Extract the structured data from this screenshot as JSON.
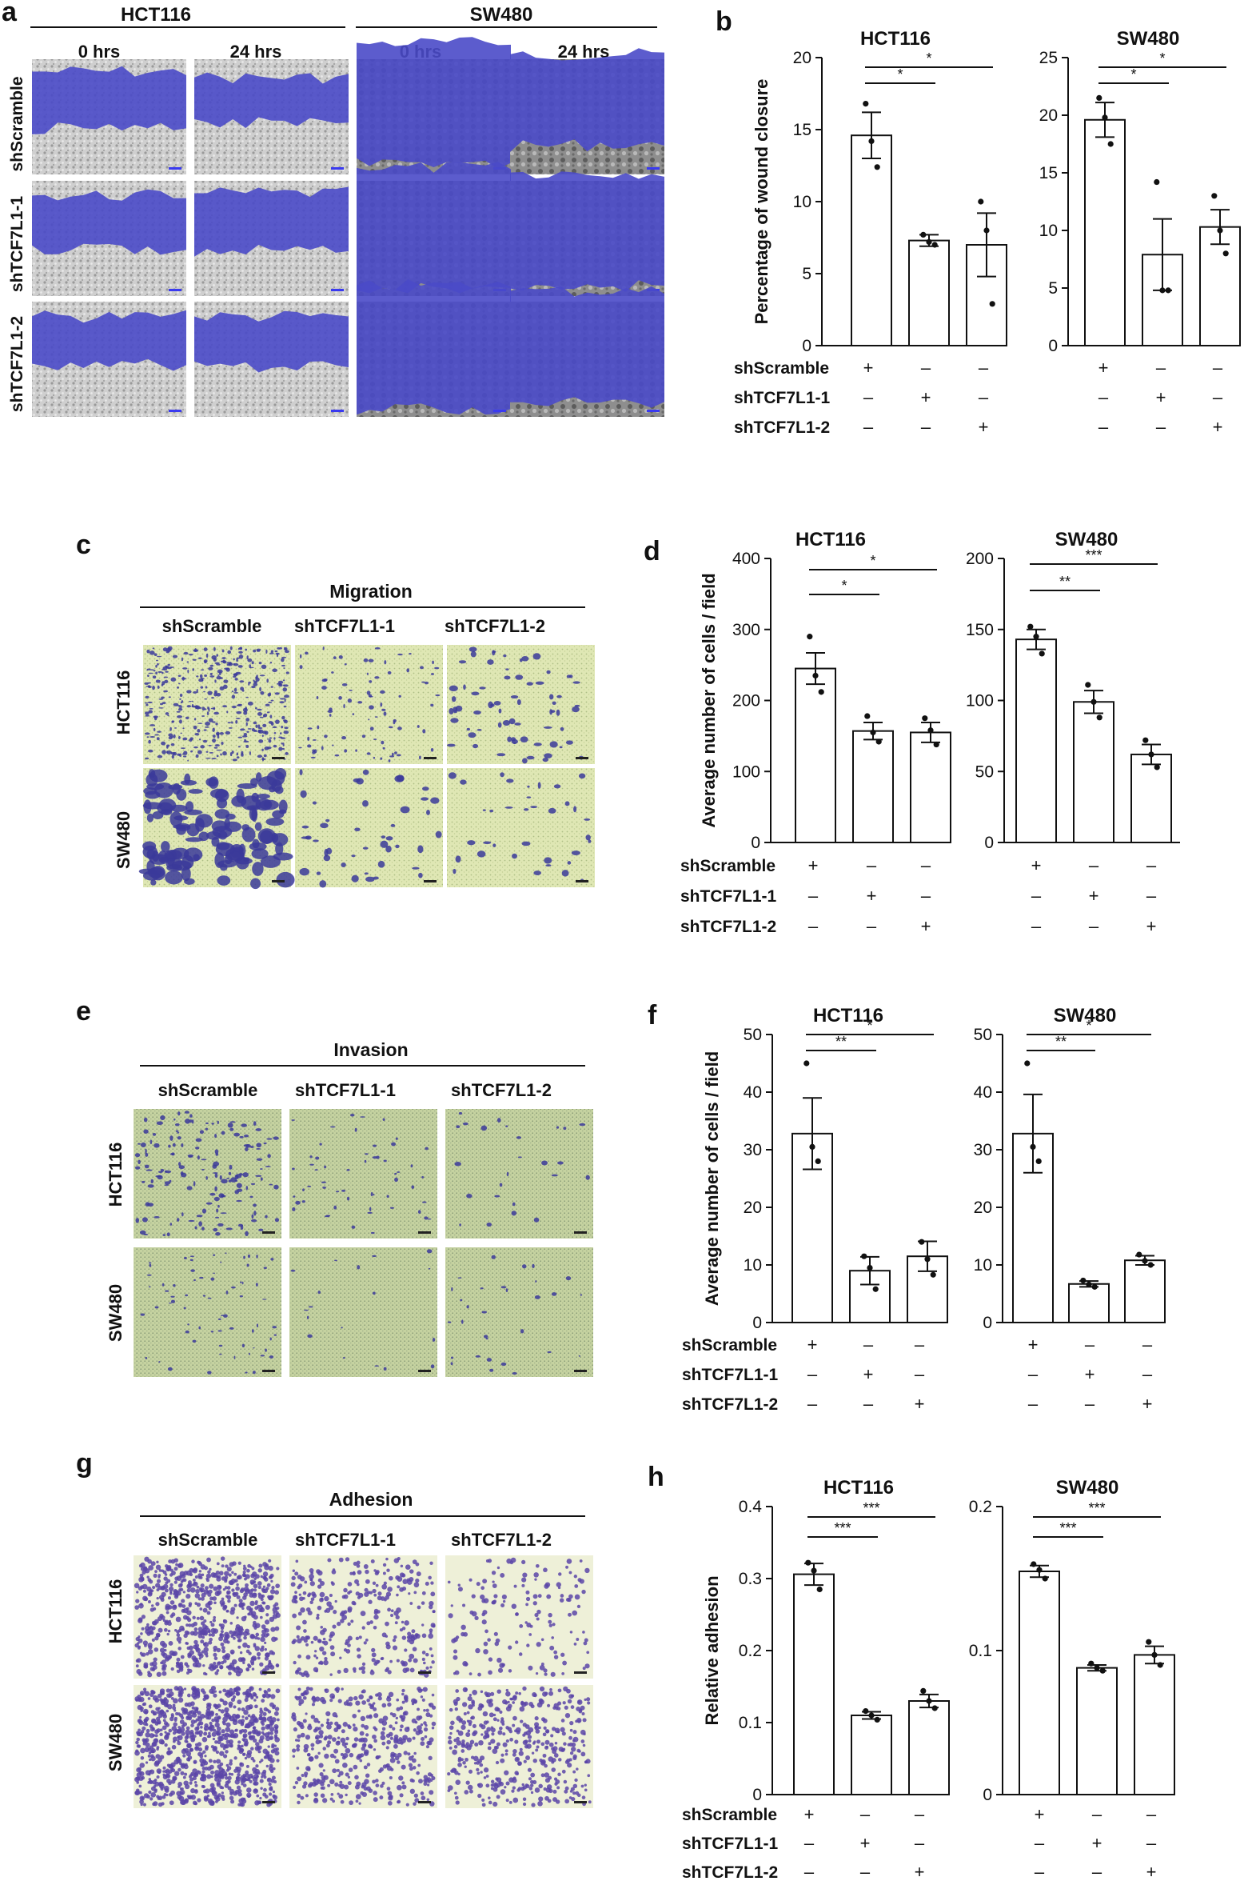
{
  "figure": {
    "panel_letters": [
      "a",
      "b",
      "c",
      "d",
      "e",
      "f",
      "g",
      "h"
    ],
    "treatment_rows": {
      "labels": [
        "shScramble",
        "shTCF7L1-1",
        "shTCF7L1-2"
      ],
      "plus": "+",
      "minus": "–"
    },
    "colors": {
      "wound_gap": "#4a4ac8",
      "cell_monolayer": "#c8c8c8",
      "transwell_background": "#dfe7b4",
      "crystal_violet": "#3b3a9a",
      "adhesion_background": "#eef0d8",
      "adhesion_cells": "#5a45a8",
      "bar_fill": "#ffffff",
      "bar_stroke": "#111111"
    },
    "panel_a": {
      "cell_lines": [
        "HCT116",
        "SW480"
      ],
      "timepoints": [
        "0 hrs",
        "24 hrs"
      ],
      "rows": [
        "shScramble",
        "shTCF7L1-1",
        "shTCF7L1-2"
      ]
    },
    "panel_c": {
      "title": "Migration",
      "columns": [
        "shScramble",
        "shTCF7L1-1",
        "shTCF7L1-2"
      ],
      "rows": [
        "HCT116",
        "SW480"
      ]
    },
    "panel_e": {
      "title": "Invasion",
      "columns": [
        "shScramble",
        "shTCF7L1-1",
        "shTCF7L1-2"
      ],
      "rows": [
        "HCT116",
        "SW480"
      ]
    },
    "panel_g": {
      "title": "Adhesion",
      "columns": [
        "shScramble",
        "shTCF7L1-1",
        "shTCF7L1-2"
      ],
      "rows": [
        "HCT116",
        "SW480"
      ]
    }
  },
  "chart_data": [
    {
      "panel": "b",
      "type": "bar",
      "title": "HCT116",
      "ylabel": "Percentage of wound closure",
      "ylim": [
        0,
        20
      ],
      "yticks": [
        "0",
        "5",
        "10",
        "15",
        "20"
      ],
      "categories": [
        "shScramble",
        "shTCF7L1-1",
        "shTCF7L1-2"
      ],
      "values": [
        14.6,
        7.3,
        7.0
      ],
      "errors": [
        1.6,
        0.4,
        2.2
      ],
      "points": [
        [
          16.8,
          14.2,
          12.4
        ],
        [
          7.7,
          7.2,
          7.0
        ],
        [
          10.0,
          8.0,
          2.9
        ]
      ],
      "significance": [
        {
          "from": 0,
          "to": 1,
          "label": "*"
        },
        {
          "from": 0,
          "to": 2,
          "label": "*"
        }
      ]
    },
    {
      "panel": "b",
      "type": "bar",
      "title": "SW480",
      "ylabel": "",
      "ylim": [
        0,
        25
      ],
      "yticks": [
        "0",
        "5",
        "10",
        "15",
        "20",
        "25"
      ],
      "categories": [
        "shScramble",
        "shTCF7L1-1",
        "shTCF7L1-2"
      ],
      "values": [
        19.6,
        7.9,
        10.3
      ],
      "errors": [
        1.5,
        3.1,
        1.5
      ],
      "points": [
        [
          21.5,
          19.8,
          17.5
        ],
        [
          14.2,
          4.8,
          4.8
        ],
        [
          13.0,
          10.0,
          8.0
        ]
      ],
      "significance": [
        {
          "from": 0,
          "to": 1,
          "label": "*"
        },
        {
          "from": 0,
          "to": 2,
          "label": "*"
        }
      ]
    },
    {
      "panel": "d",
      "type": "bar",
      "title": "HCT116",
      "ylabel": "Average number of cells / field",
      "ylim": [
        0,
        400
      ],
      "yticks": [
        "0",
        "100",
        "200",
        "300",
        "400"
      ],
      "categories": [
        "shScramble",
        "shTCF7L1-1",
        "shTCF7L1-2"
      ],
      "values": [
        245,
        157,
        155
      ],
      "errors": [
        22,
        12,
        14
      ],
      "points": [
        [
          290,
          235,
          212
        ],
        [
          178,
          155,
          142
        ],
        [
          175,
          158,
          138
        ]
      ],
      "significance": [
        {
          "from": 0,
          "to": 1,
          "label": "*"
        },
        {
          "from": 0,
          "to": 2,
          "label": "*"
        }
      ]
    },
    {
      "panel": "d",
      "type": "bar",
      "title": "SW480",
      "ylabel": "",
      "ylim": [
        0,
        200
      ],
      "yticks": [
        "0",
        "50",
        "100",
        "150",
        "200"
      ],
      "categories": [
        "shScramble",
        "shTCF7L1-1",
        "shTCF7L1-2"
      ],
      "values": [
        143,
        99,
        62
      ],
      "errors": [
        7,
        8,
        7
      ],
      "points": [
        [
          152,
          145,
          133
        ],
        [
          111,
          99,
          88
        ],
        [
          72,
          62,
          53
        ]
      ],
      "significance": [
        {
          "from": 0,
          "to": 1,
          "label": "**"
        },
        {
          "from": 0,
          "to": 2,
          "label": "***"
        }
      ]
    },
    {
      "panel": "f",
      "type": "bar",
      "title": "HCT116",
      "ylabel": "Average number of cells / field",
      "ylim": [
        0,
        50
      ],
      "yticks": [
        "0",
        "10",
        "20",
        "30",
        "40",
        "50"
      ],
      "categories": [
        "shScramble",
        "shTCF7L1-1",
        "shTCF7L1-2"
      ],
      "values": [
        32.8,
        9.0,
        11.5
      ],
      "errors": [
        6.2,
        2.4,
        2.6
      ],
      "points": [
        [
          45.0,
          30.5,
          28.0
        ],
        [
          11.5,
          9.5,
          5.8
        ],
        [
          14.0,
          11.0,
          8.3
        ]
      ],
      "significance": [
        {
          "from": 0,
          "to": 1,
          "label": "**"
        },
        {
          "from": 0,
          "to": 2,
          "label": "*"
        }
      ]
    },
    {
      "panel": "f",
      "type": "bar",
      "title": "SW480",
      "ylabel": "",
      "ylim": [
        0,
        50
      ],
      "yticks": [
        "0",
        "10",
        "20",
        "30",
        "40",
        "50"
      ],
      "categories": [
        "shScramble",
        "shTCF7L1-1",
        "shTCF7L1-2"
      ],
      "values": [
        32.8,
        6.7,
        10.8
      ],
      "errors": [
        6.8,
        0.5,
        0.8
      ],
      "points": [
        [
          45.0,
          30.5,
          28.0
        ],
        [
          7.3,
          6.6,
          6.2
        ],
        [
          11.8,
          10.7,
          10.0
        ]
      ],
      "significance": [
        {
          "from": 0,
          "to": 1,
          "label": "**"
        },
        {
          "from": 0,
          "to": 2,
          "label": "*"
        }
      ]
    },
    {
      "panel": "h",
      "type": "bar",
      "title": "HCT116",
      "ylabel": "Relative adhesion",
      "ylim": [
        0,
        0.4
      ],
      "yticks": [
        "0",
        "0.1",
        "0.2",
        "0.3",
        "0.4"
      ],
      "categories": [
        "shScramble",
        "shTCF7L1-1",
        "shTCF7L1-2"
      ],
      "values": [
        0.306,
        0.11,
        0.13
      ],
      "errors": [
        0.015,
        0.005,
        0.009
      ],
      "points": [
        [
          0.322,
          0.311,
          0.285
        ],
        [
          0.116,
          0.11,
          0.104
        ],
        [
          0.144,
          0.13,
          0.12
        ]
      ],
      "significance": [
        {
          "from": 0,
          "to": 1,
          "label": "***"
        },
        {
          "from": 0,
          "to": 2,
          "label": "***"
        }
      ]
    },
    {
      "panel": "h",
      "type": "bar",
      "title": "SW480",
      "ylabel": "",
      "ylim": [
        0,
        0.2
      ],
      "yticks": [
        "0",
        "0.1",
        "0.2"
      ],
      "categories": [
        "shScramble",
        "shTCF7L1-1",
        "shTCF7L1-2"
      ],
      "values": [
        0.155,
        0.088,
        0.097
      ],
      "errors": [
        0.004,
        0.002,
        0.006
      ],
      "points": [
        [
          0.16,
          0.156,
          0.15
        ],
        [
          0.091,
          0.088,
          0.086
        ],
        [
          0.106,
          0.097,
          0.09
        ]
      ],
      "significance": [
        {
          "from": 0,
          "to": 1,
          "label": "***"
        },
        {
          "from": 0,
          "to": 2,
          "label": "***"
        }
      ]
    }
  ]
}
